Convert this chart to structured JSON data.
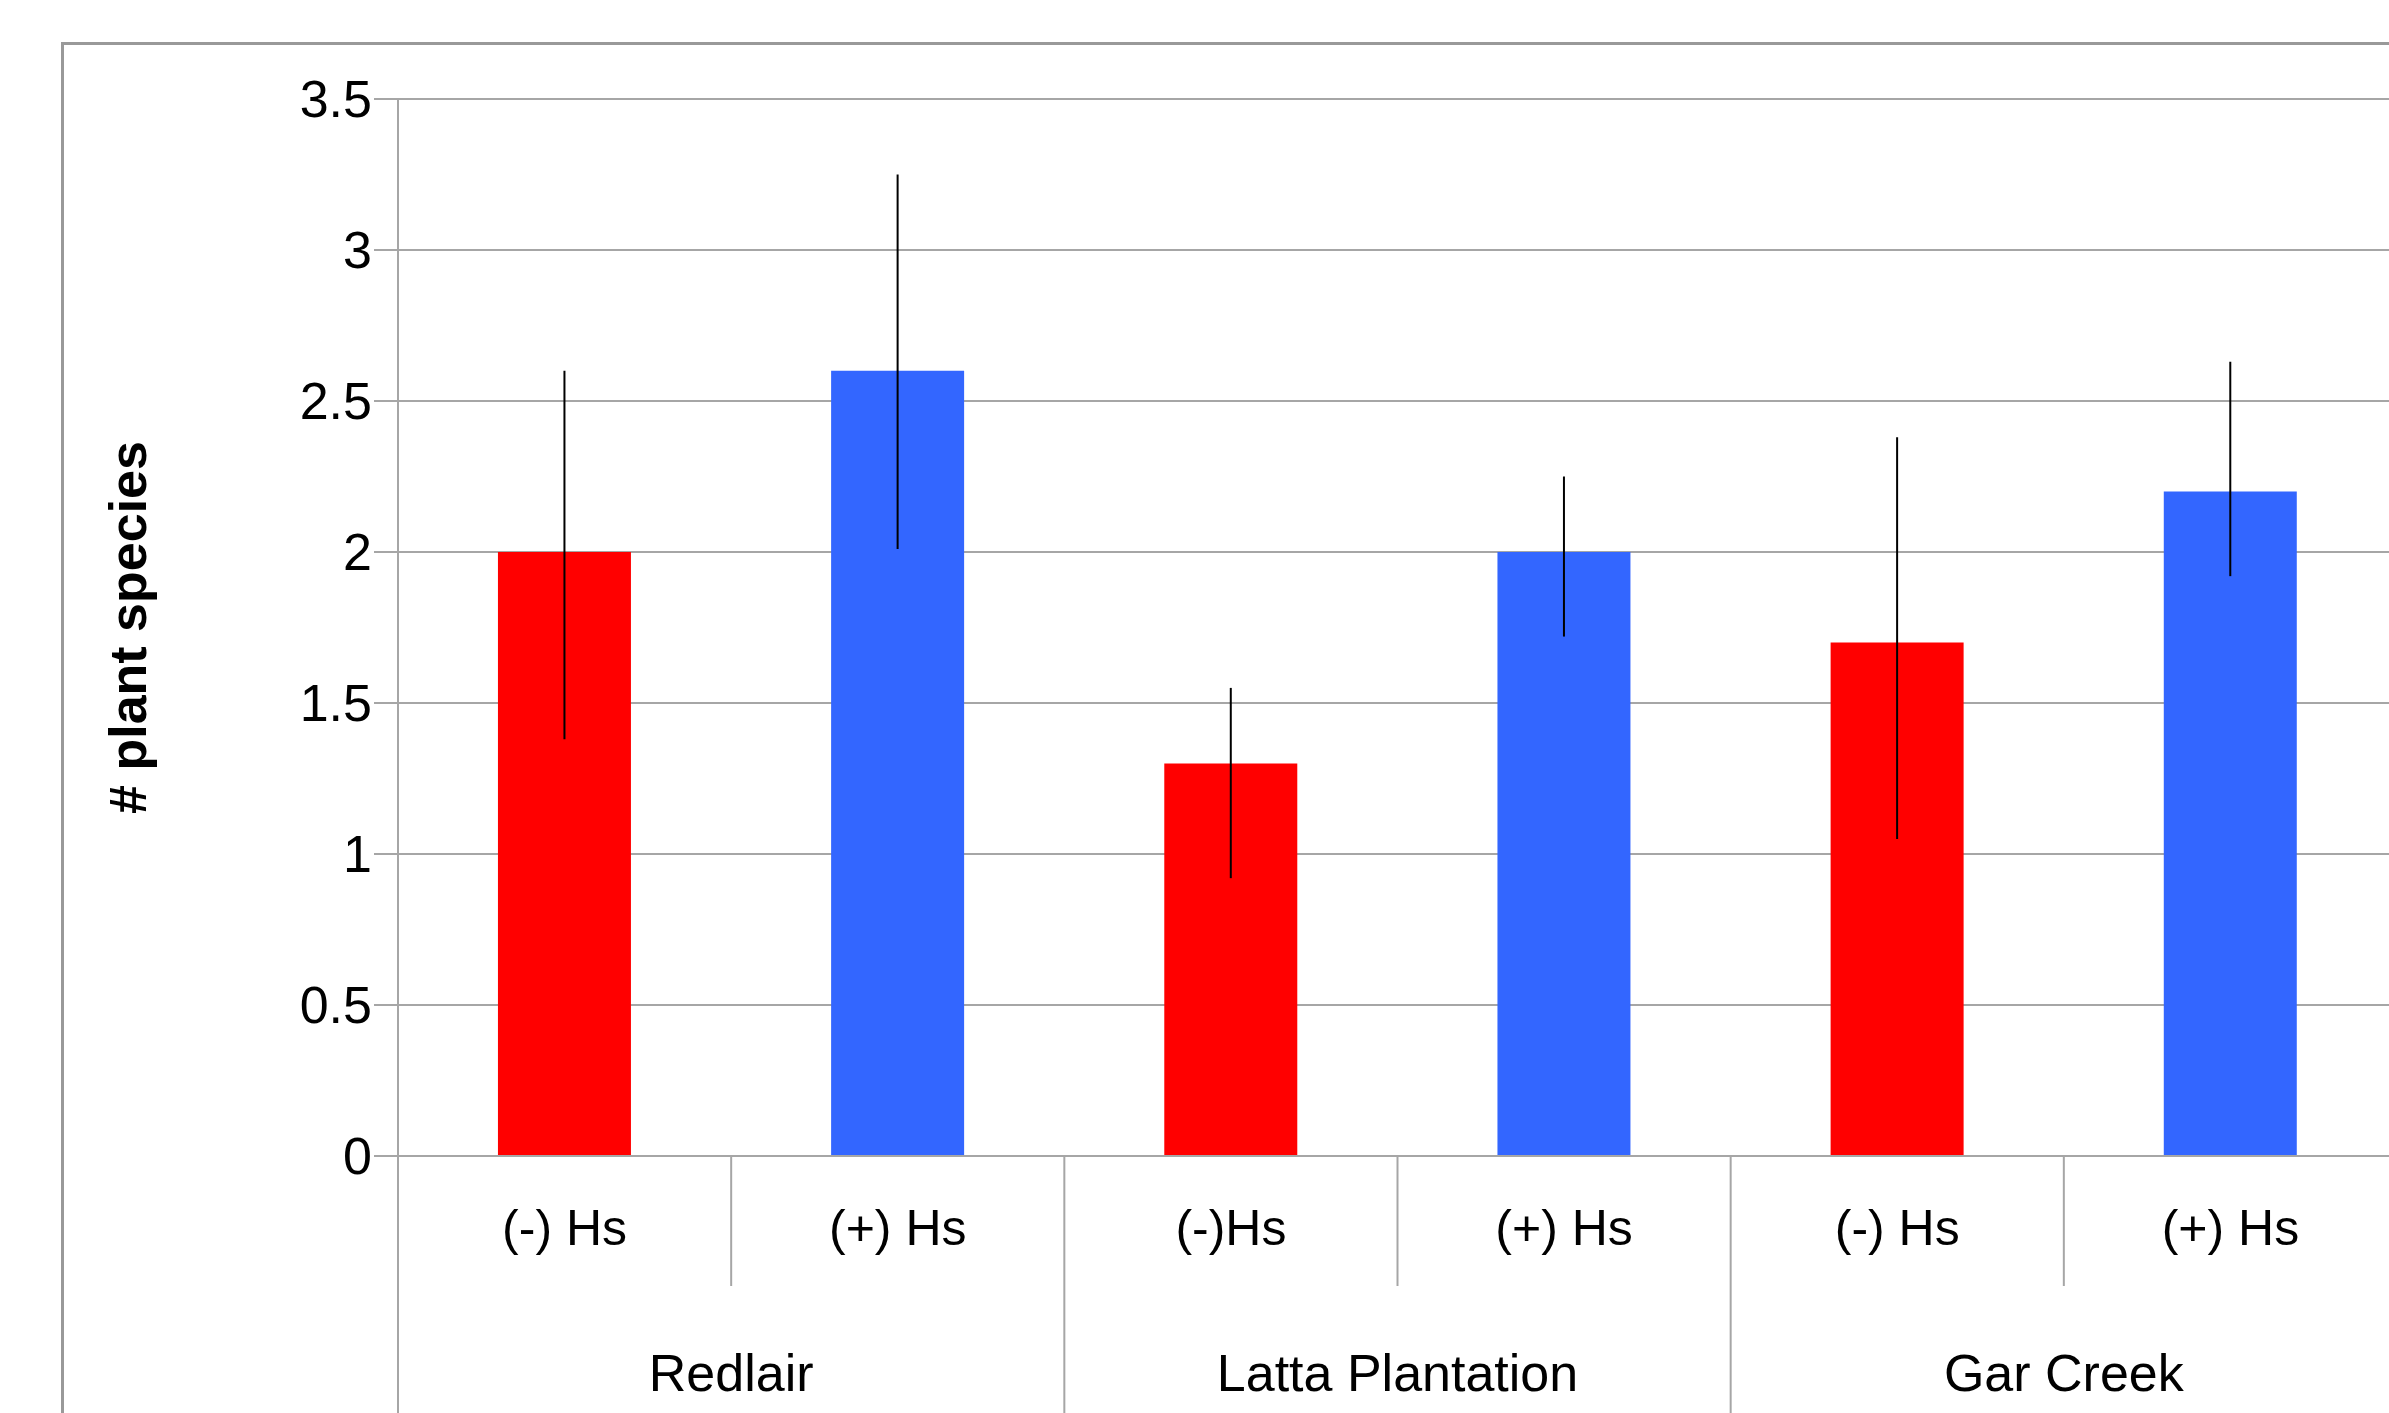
{
  "chart_data": {
    "type": "bar",
    "ylabel": "# plant species",
    "categories": [
      "(-) Hs",
      "(+) Hs",
      "(-)Hs",
      "(+) Hs",
      "(-) Hs",
      "(+) Hs"
    ],
    "values": [
      2.0,
      2.6,
      1.3,
      2.0,
      1.7,
      2.2
    ],
    "colors": [
      "#ff0000",
      "#3366ff",
      "#ff0000",
      "#3366ff",
      "#ff0000",
      "#3366ff"
    ],
    "errors": [
      [
        1.38,
        2.6
      ],
      [
        2.01,
        3.25
      ],
      [
        0.92,
        1.55
      ],
      [
        1.72,
        2.25
      ],
      [
        1.05,
        2.38
      ],
      [
        1.92,
        2.63
      ]
    ],
    "annotations": [
      "Redlair",
      "Latta Plantation",
      "Gar Creek"
    ],
    "ylim": [
      0,
      3.5
    ],
    "yticks": [
      0,
      0.5,
      1,
      1.5,
      2,
      2.5,
      3,
      3.5
    ],
    "grid": "y"
  }
}
